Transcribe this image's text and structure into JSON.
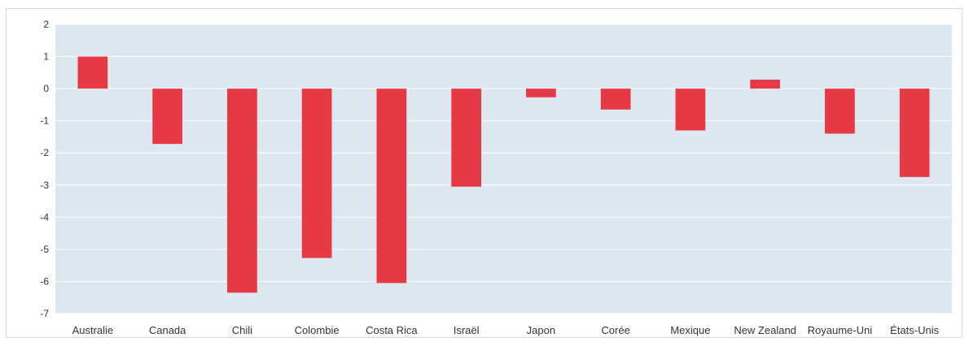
{
  "chart_data": {
    "type": "bar",
    "title": "",
    "xlabel": "",
    "ylabel": "",
    "categories": [
      "Australie",
      "Canada",
      "Chili",
      "Colombie",
      "Costa Rica",
      "Israël",
      "Japon",
      "Corée",
      "Mexique",
      "New Zealand",
      "Royaume-Uni",
      "États-Unis"
    ],
    "values": [
      1.0,
      -1.72,
      -6.35,
      -5.27,
      -6.05,
      -3.05,
      -0.27,
      -0.65,
      -1.3,
      0.28,
      -1.4,
      -2.75
    ],
    "ylim": [
      -7,
      2
    ],
    "yticks": [
      "2",
      "1",
      "0",
      "-1",
      "-2",
      "-3",
      "-4",
      "-5",
      "-6",
      "-7"
    ],
    "grid": true,
    "legend": "none",
    "colors": {
      "bar": "#E63946",
      "plot_background": "#DDE7EF",
      "gridline": "#FFFFFF",
      "frame": "#D9D9D9"
    }
  }
}
